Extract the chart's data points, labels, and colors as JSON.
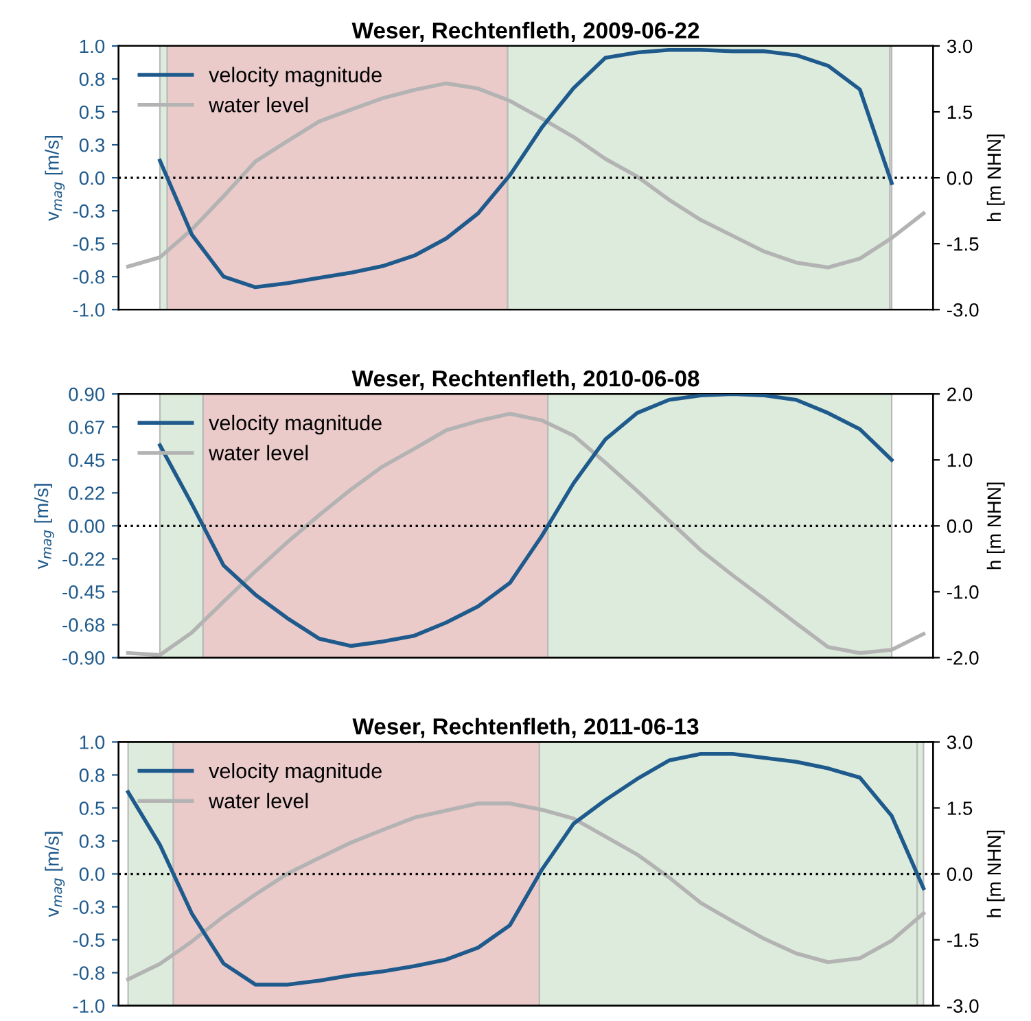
{
  "chart_data": [
    {
      "type": "line",
      "title": "Weser, Rechtenfleth, 2009-06-22",
      "ylabel": "v$_{mag}$ [m/s]",
      "y2label": "h [m NHN]",
      "categories": [
        null,
        null,
        null,
        null,
        null,
        null,
        null,
        null,
        null,
        null,
        null,
        null,
        null,
        null,
        null,
        null,
        null,
        null,
        null,
        null,
        null,
        null,
        null,
        null,
        null,
        null
      ],
      "ylim": [
        -1.0,
        1.0
      ],
      "yticks": [
        {
          "value": -1.0,
          "label": "-1.0"
        },
        {
          "value": -0.75,
          "label": "-0.8"
        },
        {
          "value": -0.5,
          "label": "-0.5"
        },
        {
          "value": -0.25,
          "label": "-0.3"
        },
        {
          "value": 0.0,
          "label": "0.0"
        },
        {
          "value": 0.25,
          "label": "0.3"
        },
        {
          "value": 0.5,
          "label": "0.5"
        },
        {
          "value": 0.75,
          "label": "0.8"
        },
        {
          "value": 1.0,
          "label": "1.0"
        }
      ],
      "y2lim": [
        -3.0,
        3.0
      ],
      "y2ticks": [
        {
          "value": -3.0,
          "label": "-3.0"
        },
        {
          "value": -1.5,
          "label": "-1.5"
        },
        {
          "value": 0.0,
          "label": "0.0"
        },
        {
          "value": 1.5,
          "label": "1.5"
        },
        {
          "value": 3.0,
          "label": "3.0"
        }
      ],
      "legend": "top left",
      "ref_lines": [
        {
          "axis": "y",
          "value": 0,
          "color": "#000000",
          "line_style": "dotted"
        }
      ],
      "series": [
        {
          "name": "velocity magnitude",
          "color": "#1f5a8c",
          "values": [
            null,
            0.13,
            -0.43,
            -0.75,
            -0.83,
            -0.8,
            -0.76,
            -0.72,
            -0.67,
            -0.59,
            -0.46,
            -0.27,
            0.02,
            0.38,
            0.68,
            0.91,
            0.95,
            0.97,
            0.97,
            0.96,
            0.96,
            0.93,
            0.85,
            0.67,
            -0.04,
            null
          ]
        },
        {
          "name": "water level",
          "color": "#b3b3b3",
          "axis": "y2",
          "values": [
            -2.02,
            -1.81,
            -1.18,
            -0.42,
            0.37,
            0.83,
            1.28,
            1.55,
            1.81,
            2.0,
            2.15,
            2.03,
            1.75,
            1.35,
            0.93,
            0.43,
            0.03,
            -0.5,
            -0.96,
            -1.32,
            -1.68,
            -1.93,
            -2.04,
            -1.84,
            -1.37,
            -0.81
          ]
        }
      ]
    },
    {
      "type": "line",
      "title": "Weser, Rechtenfleth, 2010-06-08",
      "ylabel": "v$_{mag}$ [m/s]",
      "y2label": "h [m NHN]",
      "categories": [
        null,
        null,
        null,
        null,
        null,
        null,
        null,
        null,
        null,
        null,
        null,
        null,
        null,
        null,
        null,
        null,
        null,
        null,
        null,
        null,
        null,
        null,
        null,
        null,
        null,
        null
      ],
      "ylim": [
        -0.9,
        0.9
      ],
      "yticks": [
        {
          "value": -0.9,
          "label": "-0.90"
        },
        {
          "value": -0.675,
          "label": "-0.68"
        },
        {
          "value": -0.45,
          "label": "-0.45"
        },
        {
          "value": -0.225,
          "label": "-0.22"
        },
        {
          "value": 0.0,
          "label": "0.00"
        },
        {
          "value": 0.225,
          "label": "0.22"
        },
        {
          "value": 0.45,
          "label": "0.45"
        },
        {
          "value": 0.675,
          "label": "0.67"
        },
        {
          "value": 0.9,
          "label": "0.90"
        }
      ],
      "y2lim": [
        -2.0,
        2.0
      ],
      "y2ticks": [
        {
          "value": -2.0,
          "label": "-2.0"
        },
        {
          "value": -1.0,
          "label": "-1.0"
        },
        {
          "value": 0.0,
          "label": "0.0"
        },
        {
          "value": 1.0,
          "label": "1.0"
        },
        {
          "value": 2.0,
          "label": "2.0"
        }
      ],
      "legend": "top left",
      "ref_lines": [
        {
          "axis": "y",
          "value": 0,
          "color": "#000000",
          "line_style": "dotted"
        }
      ],
      "series": [
        {
          "name": "velocity magnitude",
          "color": "#1f5a8c",
          "values": [
            null,
            0.55,
            0.15,
            -0.27,
            -0.47,
            -0.63,
            -0.77,
            -0.82,
            -0.79,
            -0.75,
            -0.66,
            -0.55,
            -0.39,
            -0.07,
            0.29,
            0.59,
            0.77,
            0.86,
            0.89,
            0.9,
            0.89,
            0.86,
            0.77,
            0.66,
            0.45,
            null
          ]
        },
        {
          "name": "water level",
          "color": "#b3b3b3",
          "axis": "y2",
          "values": [
            -1.93,
            -1.96,
            -1.62,
            -1.15,
            -0.69,
            -0.25,
            0.16,
            0.55,
            0.9,
            1.17,
            1.45,
            1.59,
            1.7,
            1.6,
            1.37,
            0.96,
            0.53,
            0.08,
            -0.37,
            -0.75,
            -1.11,
            -1.48,
            -1.84,
            -1.93,
            -1.88,
            -1.64
          ]
        }
      ]
    },
    {
      "type": "line",
      "title": "Weser, Rechtenfleth, 2011-06-13",
      "ylabel": "v$_{mag}$ [m/s]",
      "y2label": "h [m NHN]",
      "categories": [
        null,
        null,
        null,
        null,
        null,
        null,
        null,
        null,
        null,
        null,
        null,
        null,
        null,
        null,
        null,
        null,
        null,
        null,
        null,
        null,
        null,
        null,
        null,
        null,
        null,
        null
      ],
      "ylim": [
        -1.0,
        1.0
      ],
      "yticks": [
        {
          "value": -1.0,
          "label": "-1.0"
        },
        {
          "value": -0.75,
          "label": "-0.8"
        },
        {
          "value": -0.5,
          "label": "-0.5"
        },
        {
          "value": -0.25,
          "label": "-0.3"
        },
        {
          "value": 0.0,
          "label": "0.0"
        },
        {
          "value": 0.25,
          "label": "0.3"
        },
        {
          "value": 0.5,
          "label": "0.5"
        },
        {
          "value": 0.75,
          "label": "0.8"
        },
        {
          "value": 1.0,
          "label": "1.0"
        }
      ],
      "y2lim": [
        -3.0,
        3.0
      ],
      "y2ticks": [
        {
          "value": -3.0,
          "label": "-3.0"
        },
        {
          "value": -1.5,
          "label": "-1.5"
        },
        {
          "value": 0.0,
          "label": "0.0"
        },
        {
          "value": 1.5,
          "label": "1.5"
        },
        {
          "value": 3.0,
          "label": "3.0"
        }
      ],
      "legend": "top left",
      "ref_lines": [
        {
          "axis": "y",
          "value": 0,
          "color": "#000000",
          "line_style": "dotted"
        }
      ],
      "series": [
        {
          "name": "velocity magnitude",
          "color": "#1f5a8c",
          "values": [
            0.62,
            0.22,
            -0.3,
            -0.68,
            -0.84,
            -0.84,
            -0.81,
            -0.77,
            -0.74,
            -0.7,
            -0.65,
            -0.56,
            -0.39,
            0.03,
            0.38,
            0.56,
            0.72,
            0.86,
            0.91,
            0.91,
            0.88,
            0.85,
            0.8,
            0.73,
            0.44,
            -0.11
          ]
        },
        {
          "name": "water level",
          "color": "#b3b3b3",
          "axis": "y2",
          "values": [
            -2.4,
            -2.05,
            -1.54,
            -0.97,
            -0.47,
            0.0,
            0.36,
            0.71,
            1.0,
            1.28,
            1.44,
            1.6,
            1.6,
            1.46,
            1.26,
            0.85,
            0.44,
            -0.08,
            -0.66,
            -1.08,
            -1.48,
            -1.81,
            -2.01,
            -1.92,
            -1.52,
            -0.9
          ]
        }
      ]
    }
  ]
}
